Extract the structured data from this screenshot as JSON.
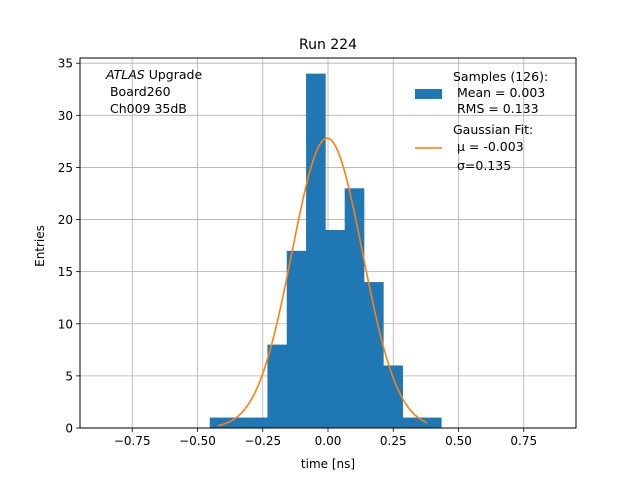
{
  "chart_data": {
    "type": "bar",
    "title": "Run 224",
    "xlabel": "time [ns]",
    "ylabel": "Entries",
    "xlim": [
      -0.95,
      0.95
    ],
    "ylim": [
      0,
      35.5
    ],
    "grid": true,
    "xticks": [
      -0.75,
      -0.5,
      -0.25,
      0.0,
      0.25,
      0.5,
      0.75
    ],
    "xtick_labels": [
      "−0.75",
      "−0.50",
      "−0.25",
      "0.00",
      "0.25",
      "0.50",
      "0.75"
    ],
    "yticks": [
      0,
      5,
      10,
      15,
      20,
      25,
      30,
      35
    ],
    "ytick_labels": [
      "0",
      "5",
      "10",
      "15",
      "20",
      "25",
      "30",
      "35"
    ],
    "histogram": {
      "bin_edges": [
        -0.453,
        -0.379,
        -0.306,
        -0.232,
        -0.158,
        -0.084,
        -0.01,
        0.064,
        0.138,
        0.212,
        0.286,
        0.36,
        0.434
      ],
      "counts": [
        1,
        1,
        1,
        8,
        17,
        34,
        19,
        23,
        14,
        6,
        1,
        1
      ],
      "color": "#1f77b4"
    },
    "fit": {
      "mu": -0.003,
      "sigma": 0.135,
      "amplitude": 27.8,
      "x_range": [
        -0.42,
        0.38
      ],
      "color": "#ff7f0e"
    },
    "annotation": {
      "italic": "ATLAS",
      "rest": " Upgrade",
      "line2": " Board260",
      "line3": " Ch009 35dB"
    },
    "legend": {
      "position": "top-right",
      "entries": [
        {
          "lines": [
            "Samples (126):",
            " Mean = 0.003",
            " RMS = 0.133"
          ],
          "color": "#1f77b4",
          "kind": "patch"
        },
        {
          "lines": [
            "Gaussian Fit:",
            " μ = -0.003",
            " σ=0.135"
          ],
          "color": "#ff7f0e",
          "kind": "line"
        }
      ]
    }
  }
}
